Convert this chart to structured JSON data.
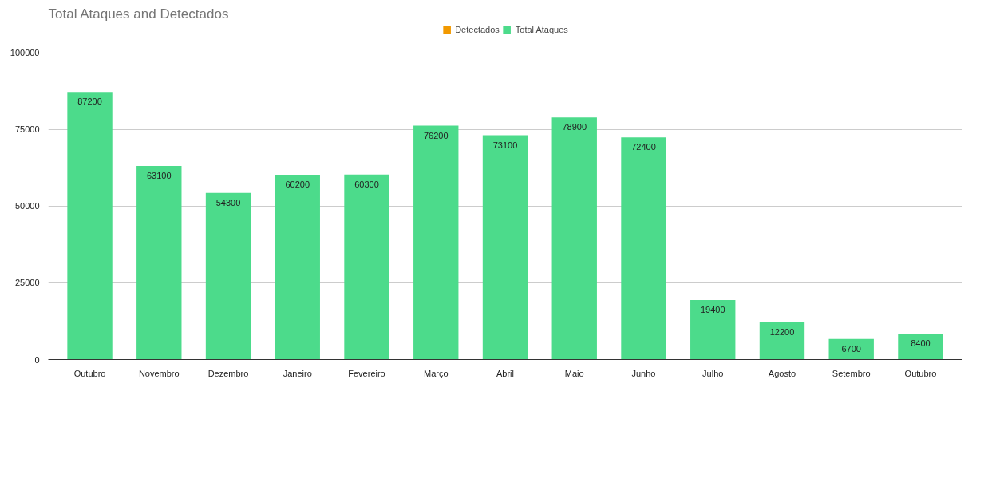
{
  "chart_data": {
    "type": "bar",
    "title": "Total Ataques and Detectados",
    "categories": [
      "Outubro",
      "Novembro",
      "Dezembro",
      "Janeiro",
      "Fevereiro",
      "Março",
      "Abril",
      "Maio",
      "Junho",
      "Julho",
      "Agosto",
      "Setembro",
      "Outubro"
    ],
    "series": [
      {
        "name": "Detectados",
        "color": "#f29900",
        "values": [
          null,
          null,
          null,
          null,
          null,
          null,
          null,
          null,
          null,
          null,
          null,
          null,
          null
        ]
      },
      {
        "name": "Total Ataques",
        "color": "#4cdb8b",
        "values": [
          87200,
          63100,
          54300,
          60200,
          60300,
          76200,
          73100,
          78900,
          72400,
          19400,
          12200,
          6700,
          8400
        ]
      }
    ],
    "stacked": true,
    "ylim": [
      0,
      100000
    ],
    "yticks": [
      0,
      25000,
      50000,
      75000,
      100000
    ],
    "grid": "y",
    "legend": "top",
    "data_labels": true
  }
}
